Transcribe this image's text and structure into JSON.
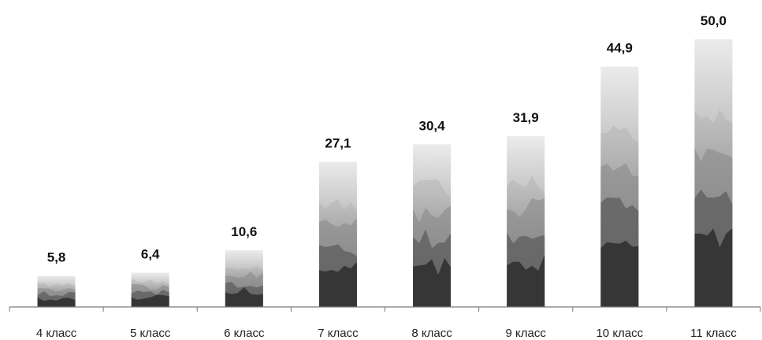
{
  "chart_data": {
    "type": "bar",
    "categories": [
      "4 класс",
      "5 класс",
      "6 класс",
      "7 класс",
      "8 класс",
      "9 класс",
      "10 класс",
      "11 класс"
    ],
    "values": [
      5.8,
      6.4,
      10.6,
      27.1,
      30.4,
      31.9,
      44.9,
      50.0
    ],
    "value_labels": [
      "5,8",
      "6,4",
      "10,6",
      "27,1",
      "30,4",
      "31,9",
      "44,9",
      "50,0"
    ],
    "title": "",
    "xlabel": "",
    "ylabel": "",
    "ylim": [
      0,
      50
    ],
    "grid": false,
    "legend": "none",
    "colors": {
      "bar_dark": "#2b2b2b",
      "bar_mid": "#6a6a6a",
      "bar_light": "#c8c8c8",
      "bar_top": "#ebebeb",
      "axis": "#7a7a7a"
    }
  }
}
